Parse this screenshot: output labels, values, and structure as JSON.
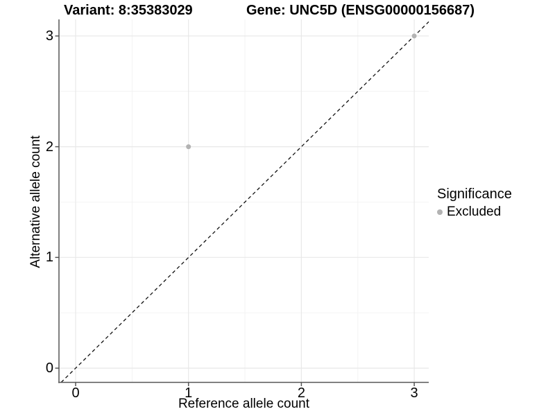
{
  "header": {
    "variant_title": "Variant: 8:35383029",
    "gene_title": "Gene: UNC5D (ENSG00000156687)"
  },
  "axes": {
    "x_label": "Reference allele count",
    "y_label": "Alternative allele count"
  },
  "legend": {
    "title": "Significance",
    "items": [
      {
        "label": "Excluded",
        "color": "#b3b3b3"
      }
    ]
  },
  "colors": {
    "axis_line": "#555555",
    "major_grid": "#e8e8e8",
    "minor_grid": "#f2f2f2",
    "dashed_line": "#111111",
    "excluded_point": "#b3b3b3",
    "background": "#ffffff"
  },
  "chart_data": {
    "type": "scatter",
    "title": "Variant: 8:35383029   Gene: UNC5D (ENSG00000156687)",
    "xlabel": "Reference allele count",
    "ylabel": "Alternative allele count",
    "xlim": [
      -0.15,
      3.15
    ],
    "ylim": [
      -0.15,
      3.15
    ],
    "x_ticks": [
      0,
      1,
      2,
      3
    ],
    "y_ticks": [
      0,
      1,
      2,
      3
    ],
    "minor_ticks": [
      0.5,
      1.5,
      2.5
    ],
    "grid": "major+minor",
    "legend_position": "right",
    "series": [
      {
        "name": "Excluded",
        "color": "#b3b3b3",
        "points": [
          {
            "x": 1,
            "y": 2
          },
          {
            "x": 3,
            "y": 3
          }
        ]
      }
    ],
    "reference_line": {
      "type": "identity y=x",
      "style": "dashed",
      "color": "#111111"
    }
  }
}
